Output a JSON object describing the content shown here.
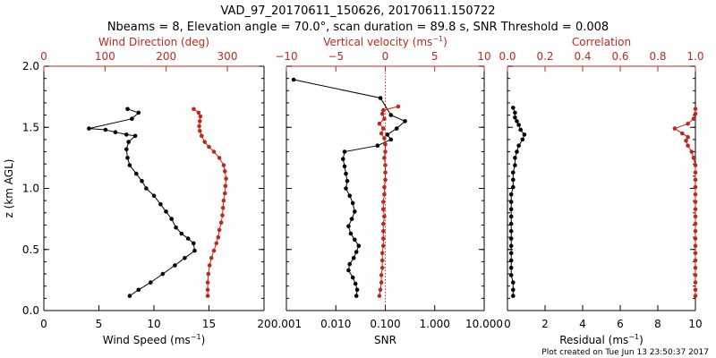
{
  "title": {
    "line1": "VAD_97_20170611_150626, 20170611.150722",
    "line2": "Nbeams = 8, Elevation angle = 70.0°, scan duration = 89.8 s, SNR Threshold = 0.008"
  },
  "footer": "Plot created on Tue Jun 13 23:50:37 2017",
  "colors": {
    "black": "#000000",
    "red": "#c0281c",
    "refline": "#e03030"
  },
  "chart_data": [
    {
      "type": "line",
      "ylabel_prefix": "z (km AGL)",
      "ylim": [
        0.0,
        2.0
      ],
      "yticks": [
        "0.0",
        "0.5",
        "1.0",
        "1.5",
        "2.0"
      ],
      "bottom_axis": {
        "label": "Wind Speed (ms",
        "label_sup": "−1",
        "label_tail": ")",
        "lim": [
          0,
          20
        ],
        "ticks": [
          "0",
          "5",
          "10",
          "15",
          "20"
        ]
      },
      "top_axis": {
        "label": "Wind Direction (deg)",
        "lim": [
          0,
          360
        ],
        "ticks": [
          "0",
          "100",
          "200",
          "300"
        ]
      },
      "series": [
        {
          "name": "Wind Speed",
          "axis": "bottom",
          "color": "black",
          "x": [
            7.8,
            8.6,
            9.7,
            10.8,
            11.9,
            12.8,
            13.7,
            13.6,
            13.1,
            12.5,
            12.0,
            11.6,
            11.1,
            10.6,
            10.0,
            9.3,
            8.9,
            8.4,
            7.8,
            7.6,
            7.5,
            7.7,
            8.3,
            7.5,
            6.5,
            5.6,
            4.1,
            8.0,
            8.6,
            7.6
          ],
          "z": [
            0.12,
            0.17,
            0.23,
            0.3,
            0.37,
            0.43,
            0.49,
            0.55,
            0.59,
            0.63,
            0.68,
            0.75,
            0.81,
            0.87,
            0.94,
            1.0,
            1.06,
            1.12,
            1.19,
            1.25,
            1.32,
            1.38,
            1.43,
            1.44,
            1.46,
            1.48,
            1.49,
            1.57,
            1.62,
            1.65
          ]
        },
        {
          "name": "Wind Direction",
          "axis": "top",
          "color": "red",
          "x": [
            268,
            268,
            268,
            269,
            271,
            274,
            278,
            282,
            285,
            287,
            290,
            292,
            293,
            294,
            296,
            297,
            298,
            296,
            294,
            287,
            278,
            270,
            263,
            258,
            255,
            254,
            255,
            256,
            253,
            245
          ],
          "z": [
            0.12,
            0.17,
            0.23,
            0.3,
            0.37,
            0.43,
            0.49,
            0.55,
            0.6,
            0.66,
            0.72,
            0.78,
            0.84,
            0.9,
            0.96,
            1.02,
            1.08,
            1.14,
            1.19,
            1.25,
            1.3,
            1.34,
            1.38,
            1.43,
            1.47,
            1.51,
            1.55,
            1.59,
            1.62,
            1.65
          ]
        }
      ]
    },
    {
      "type": "line",
      "ylim": [
        0.0,
        2.0
      ],
      "bottom_axis": {
        "label": "SNR",
        "scale": "log",
        "lim": [
          0.001,
          10.0
        ],
        "ticks": [
          "0.001",
          "0.010",
          "0.100",
          "1.000",
          "10.000"
        ]
      },
      "top_axis": {
        "label": "Vertical velocity (ms",
        "label_sup": "−1",
        "label_tail": ")",
        "lim": [
          -10,
          10
        ],
        "ticks": [
          "−10",
          "−5",
          "0",
          "5",
          "10"
        ]
      },
      "reference_line": {
        "axis": "top",
        "x": 0,
        "style": "dotted",
        "color": "red"
      },
      "series": [
        {
          "name": "SNR",
          "axis": "bottom",
          "color": "black",
          "x": [
            0.026,
            0.027,
            0.025,
            0.022,
            0.018,
            0.019,
            0.023,
            0.026,
            0.029,
            0.024,
            0.02,
            0.018,
            0.021,
            0.024,
            0.022,
            0.019,
            0.016,
            0.017,
            0.016,
            0.015,
            0.014,
            0.015,
            0.07,
            0.13,
            0.11,
            0.17,
            0.25,
            0.13,
            0.08,
            0.0014
          ],
          "z": [
            0.12,
            0.17,
            0.22,
            0.27,
            0.33,
            0.38,
            0.43,
            0.48,
            0.53,
            0.58,
            0.63,
            0.69,
            0.75,
            0.81,
            0.88,
            0.94,
            1.0,
            1.06,
            1.12,
            1.18,
            1.24,
            1.3,
            1.35,
            1.4,
            1.44,
            1.49,
            1.55,
            1.6,
            1.74,
            1.89
          ]
        },
        {
          "name": "Vertical velocity",
          "axis": "top",
          "color": "red",
          "x": [
            -0.6,
            -0.5,
            -0.4,
            -0.4,
            -0.3,
            -0.3,
            -0.3,
            -0.2,
            -0.2,
            -0.2,
            -0.2,
            -0.1,
            -0.2,
            -0.2,
            -0.1,
            -0.1,
            0.0,
            0.0,
            0.0,
            -0.1,
            0.0,
            0.0,
            -0.1,
            -0.4,
            -0.2,
            -0.6,
            -0.1,
            -0.3,
            -0.2,
            1.3
          ],
          "z": [
            0.12,
            0.17,
            0.23,
            0.29,
            0.35,
            0.41,
            0.47,
            0.53,
            0.59,
            0.65,
            0.71,
            0.77,
            0.83,
            0.89,
            0.95,
            1.01,
            1.07,
            1.13,
            1.19,
            1.25,
            1.3,
            1.36,
            1.41,
            1.45,
            1.49,
            1.53,
            1.57,
            1.61,
            1.64,
            1.67
          ]
        }
      ]
    },
    {
      "type": "line",
      "ylim": [
        0.0,
        2.0
      ],
      "bottom_axis": {
        "label": "Residual (ms",
        "label_sup": "−1",
        "label_tail": ")",
        "lim": [
          0,
          10
        ],
        "ticks": [
          "0",
          "2",
          "4",
          "6",
          "8",
          "10"
        ]
      },
      "top_axis": {
        "label": "Correlation",
        "lim": [
          0.0,
          1.0
        ],
        "ticks": [
          "0.0",
          "0.2",
          "0.4",
          "0.6",
          "0.8",
          "1.0"
        ]
      },
      "series": [
        {
          "name": "Residual",
          "axis": "bottom",
          "color": "black",
          "x": [
            0.3,
            0.3,
            0.3,
            0.2,
            0.2,
            0.2,
            0.2,
            0.2,
            0.2,
            0.2,
            0.2,
            0.2,
            0.2,
            0.2,
            0.2,
            0.3,
            0.3,
            0.3,
            0.4,
            0.4,
            0.5,
            0.6,
            0.8,
            0.9,
            0.7,
            0.6,
            0.5,
            0.4,
            0.4,
            0.3
          ],
          "z": [
            0.12,
            0.17,
            0.23,
            0.29,
            0.35,
            0.41,
            0.47,
            0.53,
            0.59,
            0.65,
            0.71,
            0.77,
            0.83,
            0.89,
            0.95,
            1.01,
            1.07,
            1.13,
            1.19,
            1.25,
            1.3,
            1.35,
            1.4,
            1.44,
            1.48,
            1.52,
            1.55,
            1.58,
            1.62,
            1.66
          ]
        },
        {
          "name": "Correlation",
          "axis": "top",
          "color": "red",
          "x": [
            1.0,
            1.0,
            1.0,
            1.0,
            1.0,
            1.0,
            1.0,
            1.0,
            1.0,
            1.0,
            1.0,
            1.0,
            1.0,
            1.0,
            1.0,
            1.0,
            1.0,
            1.0,
            1.0,
            0.99,
            0.98,
            0.96,
            0.95,
            0.96,
            0.93,
            0.89,
            0.96,
            0.99,
            1.0,
            1.0
          ],
          "z": [
            0.12,
            0.17,
            0.23,
            0.29,
            0.35,
            0.41,
            0.47,
            0.53,
            0.59,
            0.65,
            0.71,
            0.77,
            0.83,
            0.89,
            0.95,
            1.01,
            1.07,
            1.13,
            1.19,
            1.25,
            1.3,
            1.35,
            1.39,
            1.42,
            1.45,
            1.49,
            1.53,
            1.57,
            1.61,
            1.65
          ]
        }
      ]
    }
  ]
}
